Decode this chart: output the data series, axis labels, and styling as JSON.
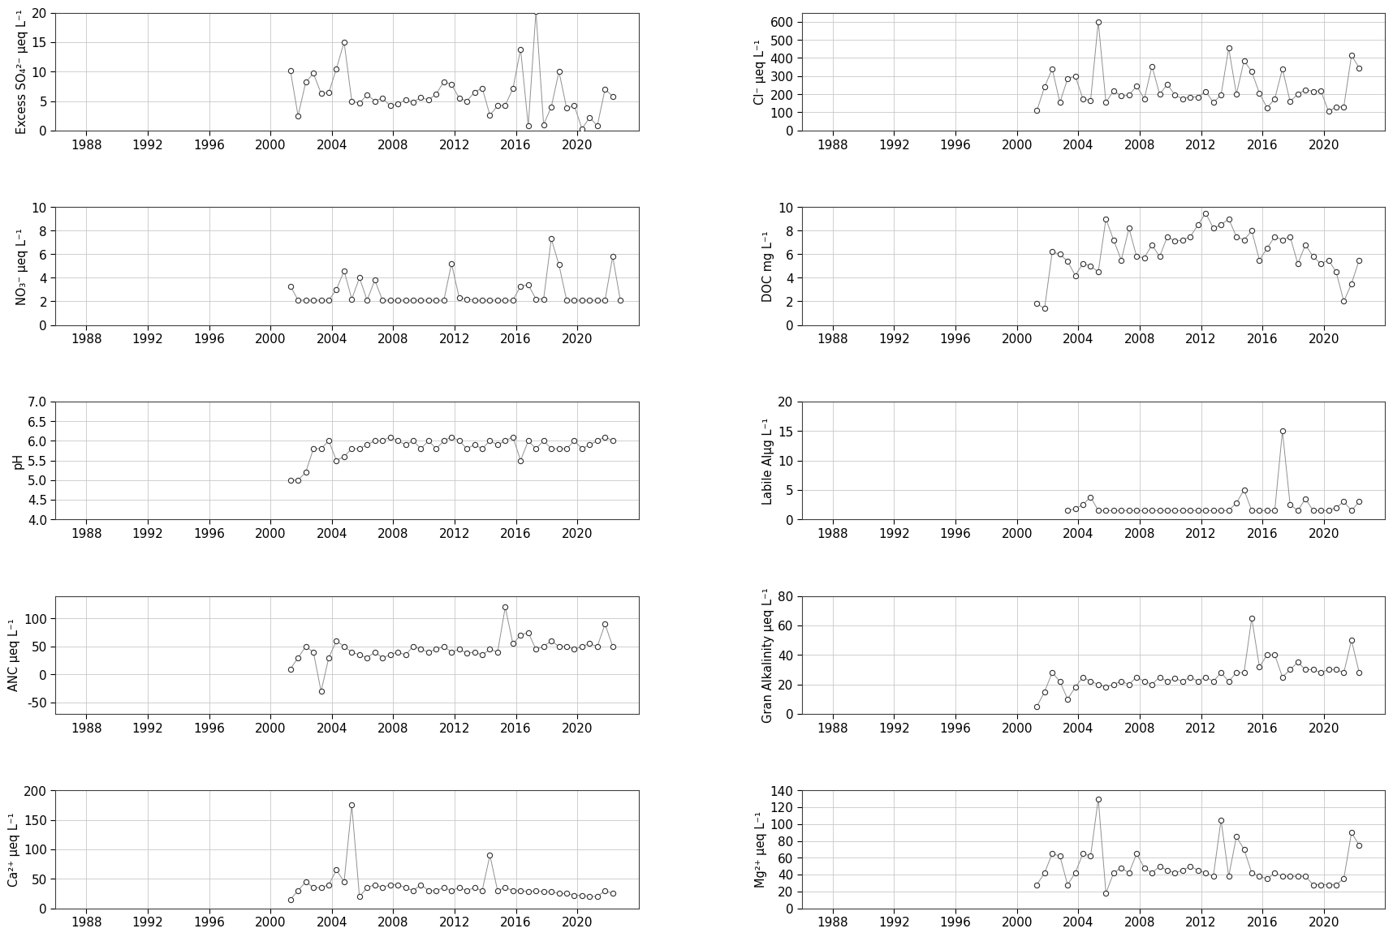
{
  "xlim": [
    1986,
    2024
  ],
  "xticks": [
    1988,
    1992,
    1996,
    2000,
    2004,
    2008,
    2012,
    2016,
    2020
  ],
  "plots": [
    {
      "ylabel": "Excess SO₄²⁻ μeq L⁻¹",
      "ylim": [
        0,
        20
      ],
      "yticks": [
        0,
        5,
        10,
        15,
        20
      ],
      "x": [
        2001.3,
        2001.8,
        2002.3,
        2002.8,
        2003.3,
        2003.8,
        2004.3,
        2004.8,
        2005.3,
        2005.8,
        2006.3,
        2006.8,
        2007.3,
        2007.8,
        2008.3,
        2008.8,
        2009.3,
        2009.8,
        2010.3,
        2010.8,
        2011.3,
        2011.8,
        2012.3,
        2012.8,
        2013.3,
        2013.8,
        2014.3,
        2014.8,
        2015.3,
        2015.8,
        2016.3,
        2016.8,
        2017.3,
        2017.8,
        2018.3,
        2018.8,
        2019.3,
        2019.8,
        2020.3,
        2020.8,
        2021.3,
        2021.8,
        2022.3
      ],
      "y": [
        10.2,
        2.5,
        8.2,
        9.7,
        6.3,
        6.4,
        10.5,
        15.0,
        5.0,
        4.6,
        6.1,
        5.0,
        5.5,
        4.2,
        4.5,
        5.2,
        4.8,
        5.6,
        5.2,
        6.2,
        8.3,
        7.8,
        5.5,
        5.0,
        6.5,
        7.2,
        2.6,
        4.2,
        4.3,
        7.1,
        13.8,
        0.8,
        20.2,
        1.0,
        4.0,
        10.0,
        3.8,
        4.2,
        0.3,
        2.2,
        0.8,
        7.0,
        5.8
      ]
    },
    {
      "ylabel": "Cl⁻ μeq L⁻¹",
      "ylim": [
        0,
        650
      ],
      "yticks": [
        0,
        100,
        200,
        300,
        400,
        500,
        600
      ],
      "x": [
        2001.3,
        2001.8,
        2002.3,
        2002.8,
        2003.3,
        2003.8,
        2004.3,
        2004.8,
        2005.3,
        2005.8,
        2006.3,
        2006.8,
        2007.3,
        2007.8,
        2008.3,
        2008.8,
        2009.3,
        2009.8,
        2010.3,
        2010.8,
        2011.3,
        2011.8,
        2012.3,
        2012.8,
        2013.3,
        2013.8,
        2014.3,
        2014.8,
        2015.3,
        2015.8,
        2016.3,
        2016.8,
        2017.3,
        2017.8,
        2018.3,
        2018.8,
        2019.3,
        2019.8,
        2020.3,
        2020.8,
        2021.3,
        2021.8,
        2022.3
      ],
      "y": [
        110,
        240,
        340,
        155,
        285,
        300,
        175,
        165,
        600,
        155,
        220,
        190,
        195,
        245,
        175,
        355,
        200,
        255,
        195,
        175,
        185,
        185,
        215,
        155,
        195,
        455,
        200,
        385,
        325,
        205,
        125,
        175,
        340,
        160,
        200,
        225,
        215,
        220,
        105,
        130,
        130,
        415,
        345
      ]
    },
    {
      "ylabel": "NO₃⁻ μeq L⁻¹",
      "ylim": [
        0,
        10
      ],
      "yticks": [
        0,
        2,
        4,
        6,
        8,
        10
      ],
      "x": [
        2001.3,
        2001.8,
        2002.3,
        2002.8,
        2003.3,
        2003.8,
        2004.3,
        2004.8,
        2005.3,
        2005.8,
        2006.3,
        2006.8,
        2007.3,
        2007.8,
        2008.3,
        2008.8,
        2009.3,
        2009.8,
        2010.3,
        2010.8,
        2011.3,
        2011.8,
        2012.3,
        2012.8,
        2013.3,
        2013.8,
        2014.3,
        2014.8,
        2015.3,
        2015.8,
        2016.3,
        2016.8,
        2017.3,
        2017.8,
        2018.3,
        2018.8,
        2019.3,
        2019.8,
        2020.3,
        2020.8,
        2021.3,
        2021.8,
        2022.3,
        2022.8
      ],
      "y": [
        3.3,
        2.1,
        2.1,
        2.1,
        2.1,
        2.1,
        3.0,
        4.6,
        2.2,
        4.0,
        2.1,
        3.8,
        2.1,
        2.1,
        2.1,
        2.1,
        2.1,
        2.1,
        2.1,
        2.1,
        2.1,
        5.2,
        2.3,
        2.2,
        2.1,
        2.1,
        2.1,
        2.1,
        2.1,
        2.1,
        3.3,
        3.4,
        2.2,
        2.2,
        7.3,
        5.1,
        2.1,
        2.1,
        2.1,
        2.1,
        2.1,
        2.1,
        5.8,
        2.1
      ]
    },
    {
      "ylabel": "DOC mg L⁻¹",
      "ylim": [
        0,
        10
      ],
      "yticks": [
        0,
        2,
        4,
        6,
        8,
        10
      ],
      "x": [
        2001.3,
        2001.8,
        2002.3,
        2002.8,
        2003.3,
        2003.8,
        2004.3,
        2004.8,
        2005.3,
        2005.8,
        2006.3,
        2006.8,
        2007.3,
        2007.8,
        2008.3,
        2008.8,
        2009.3,
        2009.8,
        2010.3,
        2010.8,
        2011.3,
        2011.8,
        2012.3,
        2012.8,
        2013.3,
        2013.8,
        2014.3,
        2014.8,
        2015.3,
        2015.8,
        2016.3,
        2016.8,
        2017.3,
        2017.8,
        2018.3,
        2018.8,
        2019.3,
        2019.8,
        2020.3,
        2020.8,
        2021.3,
        2021.8,
        2022.3
      ],
      "y": [
        1.8,
        1.4,
        6.2,
        6.0,
        5.4,
        4.2,
        5.2,
        5.0,
        4.5,
        9.0,
        7.2,
        5.5,
        8.2,
        5.8,
        5.7,
        6.8,
        5.8,
        7.5,
        7.1,
        7.2,
        7.5,
        8.5,
        9.5,
        8.2,
        8.5,
        9.0,
        7.5,
        7.2,
        8.0,
        5.5,
        6.5,
        7.5,
        7.2,
        7.5,
        5.2,
        6.8,
        5.8,
        5.2,
        5.5,
        4.5,
        2.0,
        3.5,
        5.5
      ]
    },
    {
      "ylabel": "pH",
      "ylim": [
        4.0,
        7.0
      ],
      "yticks": [
        4.0,
        4.5,
        5.0,
        5.5,
        6.0,
        6.5,
        7.0
      ],
      "x": [
        2001.3,
        2001.8,
        2002.3,
        2002.8,
        2003.3,
        2003.8,
        2004.3,
        2004.8,
        2005.3,
        2005.8,
        2006.3,
        2006.8,
        2007.3,
        2007.8,
        2008.3,
        2008.8,
        2009.3,
        2009.8,
        2010.3,
        2010.8,
        2011.3,
        2011.8,
        2012.3,
        2012.8,
        2013.3,
        2013.8,
        2014.3,
        2014.8,
        2015.3,
        2015.8,
        2016.3,
        2016.8,
        2017.3,
        2017.8,
        2018.3,
        2018.8,
        2019.3,
        2019.8,
        2020.3,
        2020.8,
        2021.3,
        2021.8,
        2022.3
      ],
      "y": [
        5.0,
        5.0,
        5.2,
        5.8,
        5.8,
        6.0,
        5.5,
        5.6,
        5.8,
        5.8,
        5.9,
        6.0,
        6.0,
        6.1,
        6.0,
        5.9,
        6.0,
        5.8,
        6.0,
        5.8,
        6.0,
        6.1,
        6.0,
        5.8,
        5.9,
        5.8,
        6.0,
        5.9,
        6.0,
        6.1,
        5.5,
        6.0,
        5.8,
        6.0,
        5.8,
        5.8,
        5.8,
        6.0,
        5.8,
        5.9,
        6.0,
        6.1,
        6.0
      ]
    },
    {
      "ylabel": "Labile Alμg L⁻¹",
      "ylim": [
        0,
        20
      ],
      "yticks": [
        0,
        5,
        10,
        15,
        20
      ],
      "x": [
        2003.3,
        2003.8,
        2004.3,
        2004.8,
        2005.3,
        2005.8,
        2006.3,
        2006.8,
        2007.3,
        2007.8,
        2008.3,
        2008.8,
        2009.3,
        2009.8,
        2010.3,
        2010.8,
        2011.3,
        2011.8,
        2012.3,
        2012.8,
        2013.3,
        2013.8,
        2014.3,
        2014.8,
        2015.3,
        2015.8,
        2016.3,
        2016.8,
        2017.3,
        2017.8,
        2018.3,
        2018.8,
        2019.3,
        2019.8,
        2020.3,
        2020.8,
        2021.3,
        2021.8,
        2022.3
      ],
      "y": [
        1.5,
        1.8,
        2.5,
        3.8,
        1.5,
        1.5,
        1.5,
        1.5,
        1.5,
        1.5,
        1.5,
        1.5,
        1.5,
        1.5,
        1.5,
        1.5,
        1.5,
        1.5,
        1.5,
        1.5,
        1.5,
        1.5,
        2.8,
        5.0,
        1.5,
        1.5,
        1.5,
        1.5,
        15.0,
        2.5,
        1.5,
        3.5,
        1.5,
        1.5,
        1.5,
        2.0,
        3.0,
        1.5,
        3.0
      ]
    },
    {
      "ylabel": "ANC μeq L⁻¹",
      "ylim": [
        -70,
        140
      ],
      "yticks": [
        -50,
        0,
        50,
        100
      ],
      "x": [
        2001.3,
        2001.8,
        2002.3,
        2002.8,
        2003.3,
        2003.8,
        2004.3,
        2004.8,
        2005.3,
        2005.8,
        2006.3,
        2006.8,
        2007.3,
        2007.8,
        2008.3,
        2008.8,
        2009.3,
        2009.8,
        2010.3,
        2010.8,
        2011.3,
        2011.8,
        2012.3,
        2012.8,
        2013.3,
        2013.8,
        2014.3,
        2014.8,
        2015.3,
        2015.8,
        2016.3,
        2016.8,
        2017.3,
        2017.8,
        2018.3,
        2018.8,
        2019.3,
        2019.8,
        2020.3,
        2020.8,
        2021.3,
        2021.8,
        2022.3
      ],
      "y": [
        10,
        30,
        50,
        40,
        -30,
        30,
        60,
        50,
        40,
        35,
        30,
        40,
        30,
        35,
        40,
        35,
        50,
        45,
        40,
        45,
        50,
        40,
        45,
        38,
        40,
        35,
        45,
        40,
        120,
        55,
        70,
        75,
        45,
        50,
        60,
        50,
        50,
        45,
        50,
        55,
        50,
        90,
        50
      ]
    },
    {
      "ylabel": "Gran Alkalinity μeq L⁻¹",
      "ylim": [
        0,
        80
      ],
      "yticks": [
        0,
        20,
        40,
        60,
        80
      ],
      "x": [
        2001.3,
        2001.8,
        2002.3,
        2002.8,
        2003.3,
        2003.8,
        2004.3,
        2004.8,
        2005.3,
        2005.8,
        2006.3,
        2006.8,
        2007.3,
        2007.8,
        2008.3,
        2008.8,
        2009.3,
        2009.8,
        2010.3,
        2010.8,
        2011.3,
        2011.8,
        2012.3,
        2012.8,
        2013.3,
        2013.8,
        2014.3,
        2014.8,
        2015.3,
        2015.8,
        2016.3,
        2016.8,
        2017.3,
        2017.8,
        2018.3,
        2018.8,
        2019.3,
        2019.8,
        2020.3,
        2020.8,
        2021.3,
        2021.8,
        2022.3
      ],
      "y": [
        5,
        15,
        28,
        22,
        10,
        18,
        25,
        22,
        20,
        18,
        20,
        22,
        20,
        25,
        22,
        20,
        25,
        22,
        24,
        22,
        25,
        22,
        25,
        22,
        28,
        22,
        28,
        28,
        65,
        32,
        40,
        40,
        25,
        30,
        35,
        30,
        30,
        28,
        30,
        30,
        28,
        50,
        28
      ]
    },
    {
      "ylabel": "Ca²⁺ μeq L⁻¹",
      "ylim": [
        0,
        200
      ],
      "yticks": [
        0,
        50,
        100,
        150,
        200
      ],
      "x": [
        2001.3,
        2001.8,
        2002.3,
        2002.8,
        2003.3,
        2003.8,
        2004.3,
        2004.8,
        2005.3,
        2005.8,
        2006.3,
        2006.8,
        2007.3,
        2007.8,
        2008.3,
        2008.8,
        2009.3,
        2009.8,
        2010.3,
        2010.8,
        2011.3,
        2011.8,
        2012.3,
        2012.8,
        2013.3,
        2013.8,
        2014.3,
        2014.8,
        2015.3,
        2015.8,
        2016.3,
        2016.8,
        2017.3,
        2017.8,
        2018.3,
        2018.8,
        2019.3,
        2019.8,
        2020.3,
        2020.8,
        2021.3,
        2021.8,
        2022.3
      ],
      "y": [
        15,
        30,
        45,
        35,
        35,
        40,
        65,
        45,
        175,
        20,
        35,
        40,
        35,
        40,
        40,
        35,
        30,
        40,
        30,
        30,
        35,
        30,
        35,
        30,
        35,
        30,
        90,
        30,
        35,
        30,
        30,
        28,
        30,
        28,
        28,
        25,
        25,
        22,
        22,
        20,
        20,
        30,
        25
      ]
    },
    {
      "ylabel": "Mg²⁺ μeq L⁻¹",
      "ylim": [
        0,
        140
      ],
      "yticks": [
        0,
        20,
        40,
        60,
        80,
        100,
        120,
        140
      ],
      "x": [
        2001.3,
        2001.8,
        2002.3,
        2002.8,
        2003.3,
        2003.8,
        2004.3,
        2004.8,
        2005.3,
        2005.8,
        2006.3,
        2006.8,
        2007.3,
        2007.8,
        2008.3,
        2008.8,
        2009.3,
        2009.8,
        2010.3,
        2010.8,
        2011.3,
        2011.8,
        2012.3,
        2012.8,
        2013.3,
        2013.8,
        2014.3,
        2014.8,
        2015.3,
        2015.8,
        2016.3,
        2016.8,
        2017.3,
        2017.8,
        2018.3,
        2018.8,
        2019.3,
        2019.8,
        2020.3,
        2020.8,
        2021.3,
        2021.8,
        2022.3
      ],
      "y": [
        28,
        42,
        65,
        62,
        28,
        42,
        65,
        62,
        130,
        18,
        42,
        48,
        42,
        65,
        48,
        42,
        50,
        45,
        42,
        45,
        50,
        45,
        42,
        38,
        105,
        38,
        85,
        70,
        42,
        38,
        35,
        42,
        38,
        38,
        38,
        38,
        28,
        28,
        28,
        28,
        35,
        90,
        75
      ]
    }
  ],
  "line_color": "#909090",
  "marker_facecolor": "white",
  "marker_edgecolor": "#303030",
  "marker_size": 4.5,
  "marker_linewidth": 0.8,
  "line_width": 0.7,
  "grid_color": "#c8c8c8",
  "grid_linewidth": 0.6,
  "background_color": "white",
  "tick_label_fontsize": 11,
  "ylabel_fontsize": 10.5,
  "show_xticks_all_rows": true
}
